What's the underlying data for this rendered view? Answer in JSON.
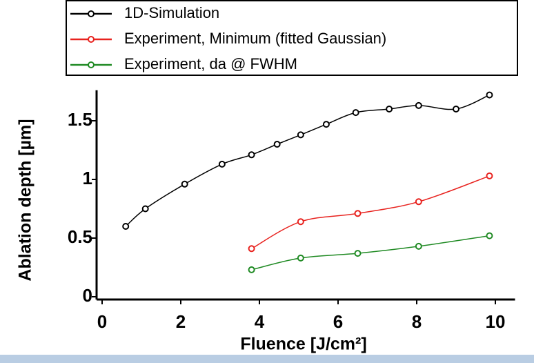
{
  "chart_data": {
    "type": "line",
    "x_label": "Fluence [J/cm²]",
    "y_label": "Ablation depth [µm]",
    "xlim": [
      0,
      10.5
    ],
    "ylim": [
      0,
      1.76
    ],
    "xticks": [
      0,
      2,
      4,
      6,
      8,
      10
    ],
    "yticks": [
      0,
      0.5,
      1,
      1.5
    ],
    "series": [
      {
        "name": "1D-Simulation",
        "color": "#000000",
        "x": [
          0.6,
          1.1,
          2.1,
          3.05,
          3.8,
          4.45,
          5.05,
          5.7,
          6.45,
          7.3,
          8.05,
          9.0,
          9.85
        ],
        "values": [
          0.6,
          0.75,
          0.96,
          1.13,
          1.21,
          1.3,
          1.38,
          1.47,
          1.57,
          1.6,
          1.63,
          1.6,
          1.72
        ]
      },
      {
        "name": "Experiment, Minimum (fitted Gaussian)",
        "color": "#e8231f",
        "x": [
          3.8,
          5.05,
          6.5,
          8.05,
          9.85
        ],
        "values": [
          0.41,
          0.64,
          0.71,
          0.81,
          1.03
        ]
      },
      {
        "name": "Experiment, da @ FWHM",
        "color": "#1f8a23",
        "x": [
          3.8,
          5.05,
          6.5,
          8.05,
          9.85
        ],
        "values": [
          0.23,
          0.33,
          0.37,
          0.43,
          0.52
        ]
      }
    ]
  }
}
